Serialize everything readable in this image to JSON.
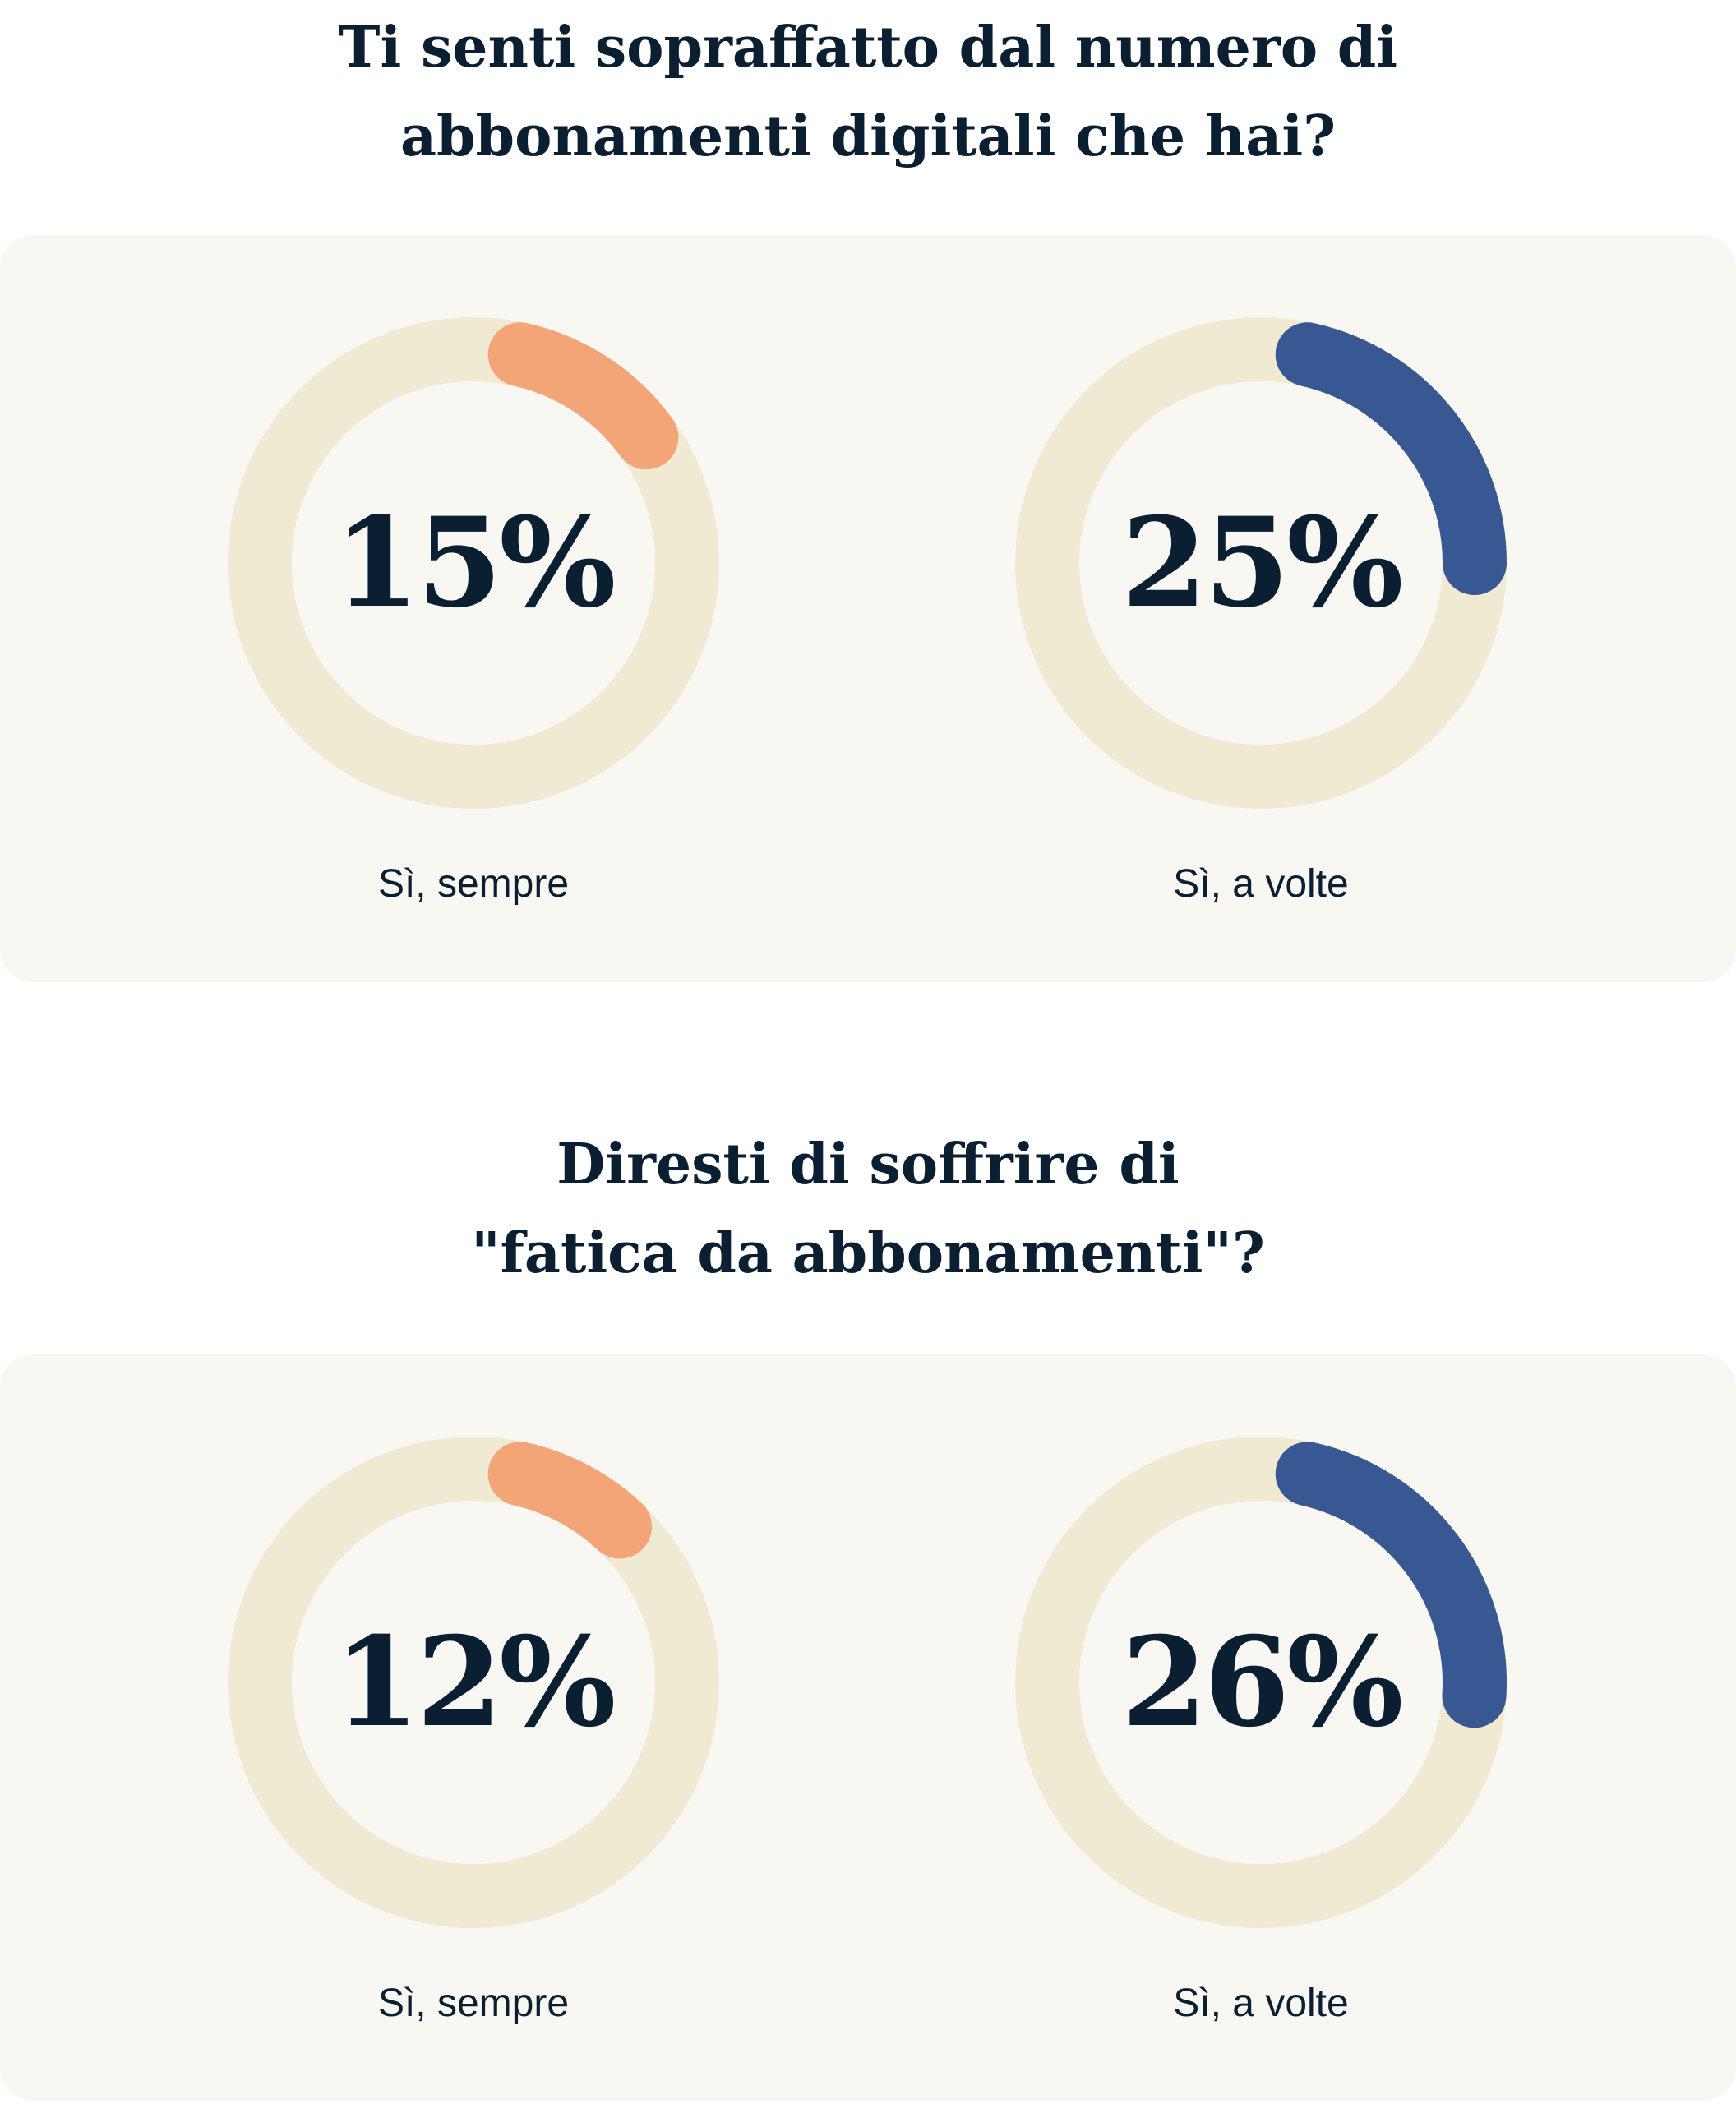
{
  "colors": {
    "track": "#f0ead2",
    "orange": "#f4a577",
    "blue": "#385893",
    "text": "#0b1f33",
    "panel": "#f9f7f2"
  },
  "chart_data": [
    {
      "type": "donut",
      "title": "Ti senti sopraffatto dal numero di abbonamenti digitali che hai?",
      "title_lines": [
        "Ti senti sopraffatto dal numero di",
        "abbonamenti digitali che hai?"
      ],
      "items": [
        {
          "label": "Sì, sempre",
          "value": 15,
          "display": "15%",
          "color": "#f4a577"
        },
        {
          "label": "Sì, a volte",
          "value": 25,
          "display": "25%",
          "color": "#385893"
        }
      ]
    },
    {
      "type": "donut",
      "title": "Diresti di soffrire di \"fatica da abbonamenti\"?",
      "title_lines": [
        "Diresti di soffrire di",
        "\"fatica da abbonamenti\"?"
      ],
      "items": [
        {
          "label": "Sì, sempre",
          "value": 12,
          "display": "12%",
          "color": "#f4a577"
        },
        {
          "label": "Sì, a volte",
          "value": 26,
          "display": "26%",
          "color": "#385893"
        }
      ]
    }
  ]
}
